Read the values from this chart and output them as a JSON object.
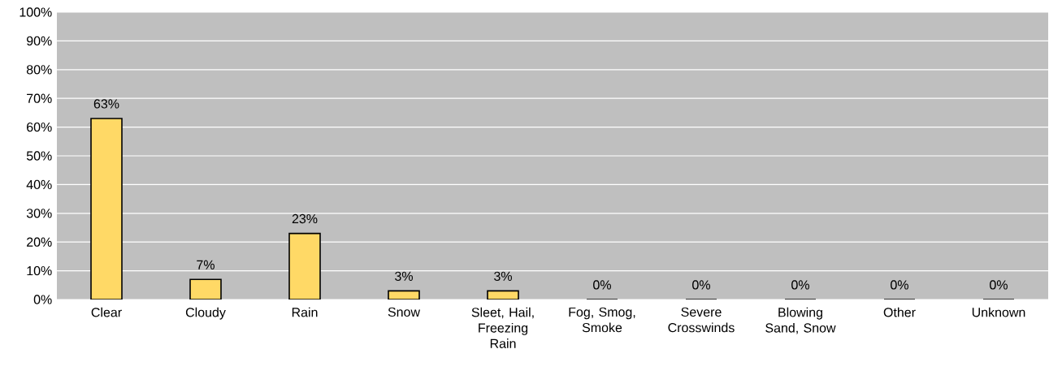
{
  "chart_data": {
    "type": "bar",
    "categories": [
      "Clear",
      "Cloudy",
      "Rain",
      "Snow",
      "Sleet, Hail, Freezing Rain",
      "Fog, Smog, Smoke",
      "Severe Crosswinds",
      "Blowing Sand, Snow",
      "Other",
      "Unknown"
    ],
    "values": [
      63,
      7,
      23,
      3,
      3,
      0,
      0,
      0,
      0,
      0
    ],
    "value_labels": [
      "63%",
      "7%",
      "23%",
      "3%",
      "3%",
      "0%",
      "0%",
      "0%",
      "0%",
      "0%"
    ],
    "color": "#ffd966",
    "ylim": [
      0,
      100
    ],
    "yticks": [
      {
        "value": 0,
        "label": "0%"
      },
      {
        "value": 10,
        "label": "10%"
      },
      {
        "value": 20,
        "label": "20%"
      },
      {
        "value": 30,
        "label": "30%"
      },
      {
        "value": 40,
        "label": "40%"
      },
      {
        "value": 50,
        "label": "50%"
      },
      {
        "value": 60,
        "label": "60%"
      },
      {
        "value": 70,
        "label": "70%"
      },
      {
        "value": 80,
        "label": "80%"
      },
      {
        "value": 90,
        "label": "90%"
      },
      {
        "value": 100,
        "label": "100%"
      }
    ],
    "grid": "y"
  }
}
